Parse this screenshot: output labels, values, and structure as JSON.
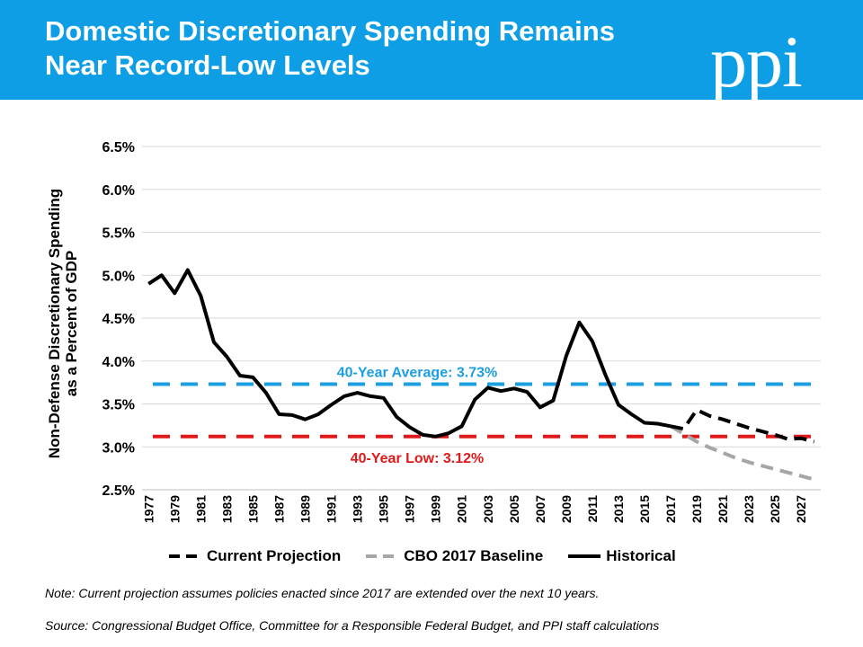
{
  "header": {
    "title_line1": "Domestic Discretionary Spending Remains",
    "title_line2": "Near Record-Low Levels",
    "logo_text": "ppi",
    "background_color": "#0d9ee6"
  },
  "footer": {
    "note": "Note: Current projection assumes policies enacted since 2017 are extended over the next 10 years.",
    "source": "Source: Congressional Budget Office, Committee for a Responsible Federal Budget, and PPI staff calculations"
  },
  "chart_data": {
    "type": "line",
    "ylabel_line1": "Non-Defense Discretionary Spending",
    "ylabel_line2": "as a Percent of GDP",
    "ylim": [
      2.5,
      6.5
    ],
    "yticks": [
      "2.5%",
      "3.0%",
      "3.5%",
      "4.0%",
      "4.5%",
      "5.0%",
      "5.5%",
      "6.0%",
      "6.5%"
    ],
    "yticks_values": [
      2.5,
      3.0,
      3.5,
      4.0,
      4.5,
      5.0,
      5.5,
      6.0,
      6.5
    ],
    "xlim": [
      1977,
      2028
    ],
    "xticks": [
      "1977",
      "1979",
      "1981",
      "1983",
      "1985",
      "1987",
      "1989",
      "1991",
      "1993",
      "1995",
      "1997",
      "1999",
      "2001",
      "2003",
      "2005",
      "2007",
      "2009",
      "2011",
      "2013",
      "2015",
      "2017",
      "2019",
      "2021",
      "2023",
      "2025",
      "2027"
    ],
    "grid": true,
    "legend_position": "bottom",
    "series": [
      {
        "name": "Historical",
        "color": "#000000",
        "style": "solid",
        "x": [
          1977,
          1978,
          1979,
          1980,
          1981,
          1982,
          1983,
          1984,
          1985,
          1986,
          1987,
          1988,
          1989,
          1990,
          1991,
          1992,
          1993,
          1994,
          1995,
          1996,
          1997,
          1998,
          1999,
          2000,
          2001,
          2002,
          2003,
          2004,
          2005,
          2006,
          2007,
          2008,
          2009,
          2010,
          2011,
          2012,
          2013,
          2014,
          2015,
          2016,
          2017
        ],
        "y": [
          4.9,
          5.0,
          4.79,
          5.06,
          4.76,
          4.22,
          4.05,
          3.83,
          3.81,
          3.63,
          3.38,
          3.37,
          3.32,
          3.38,
          3.49,
          3.59,
          3.63,
          3.59,
          3.57,
          3.35,
          3.23,
          3.14,
          3.12,
          3.16,
          3.24,
          3.55,
          3.69,
          3.65,
          3.68,
          3.64,
          3.46,
          3.54,
          4.06,
          4.45,
          4.23,
          3.84,
          3.49,
          3.38,
          3.28,
          3.27,
          3.24
        ]
      },
      {
        "name": "Current Projection",
        "color": "#000000",
        "style": "dashed",
        "x": [
          2017,
          2018,
          2019,
          2020,
          2021,
          2022,
          2023,
          2024,
          2025,
          2026,
          2027,
          2028
        ],
        "y": [
          3.24,
          3.21,
          3.43,
          3.36,
          3.32,
          3.27,
          3.22,
          3.18,
          3.14,
          3.09,
          3.1,
          3.06
        ]
      },
      {
        "name": "CBO 2017 Baseline",
        "color": "#a6a6a6",
        "style": "dashed",
        "x": [
          2017,
          2018,
          2019,
          2020,
          2021,
          2022,
          2023,
          2024,
          2025,
          2026,
          2027,
          2028
        ],
        "y": [
          3.24,
          3.15,
          3.06,
          2.99,
          2.93,
          2.87,
          2.82,
          2.78,
          2.74,
          2.7,
          2.66,
          2.62
        ]
      }
    ],
    "reference_lines": [
      {
        "label": "40-Year Average: 3.73%",
        "value": 3.73,
        "color": "#1b9fe0"
      },
      {
        "label": "40-Year Low: 3.12%",
        "value": 3.12,
        "color": "#e01a1a"
      }
    ],
    "legend": [
      "Current Projection",
      "CBO 2017 Baseline",
      "Historical"
    ]
  }
}
